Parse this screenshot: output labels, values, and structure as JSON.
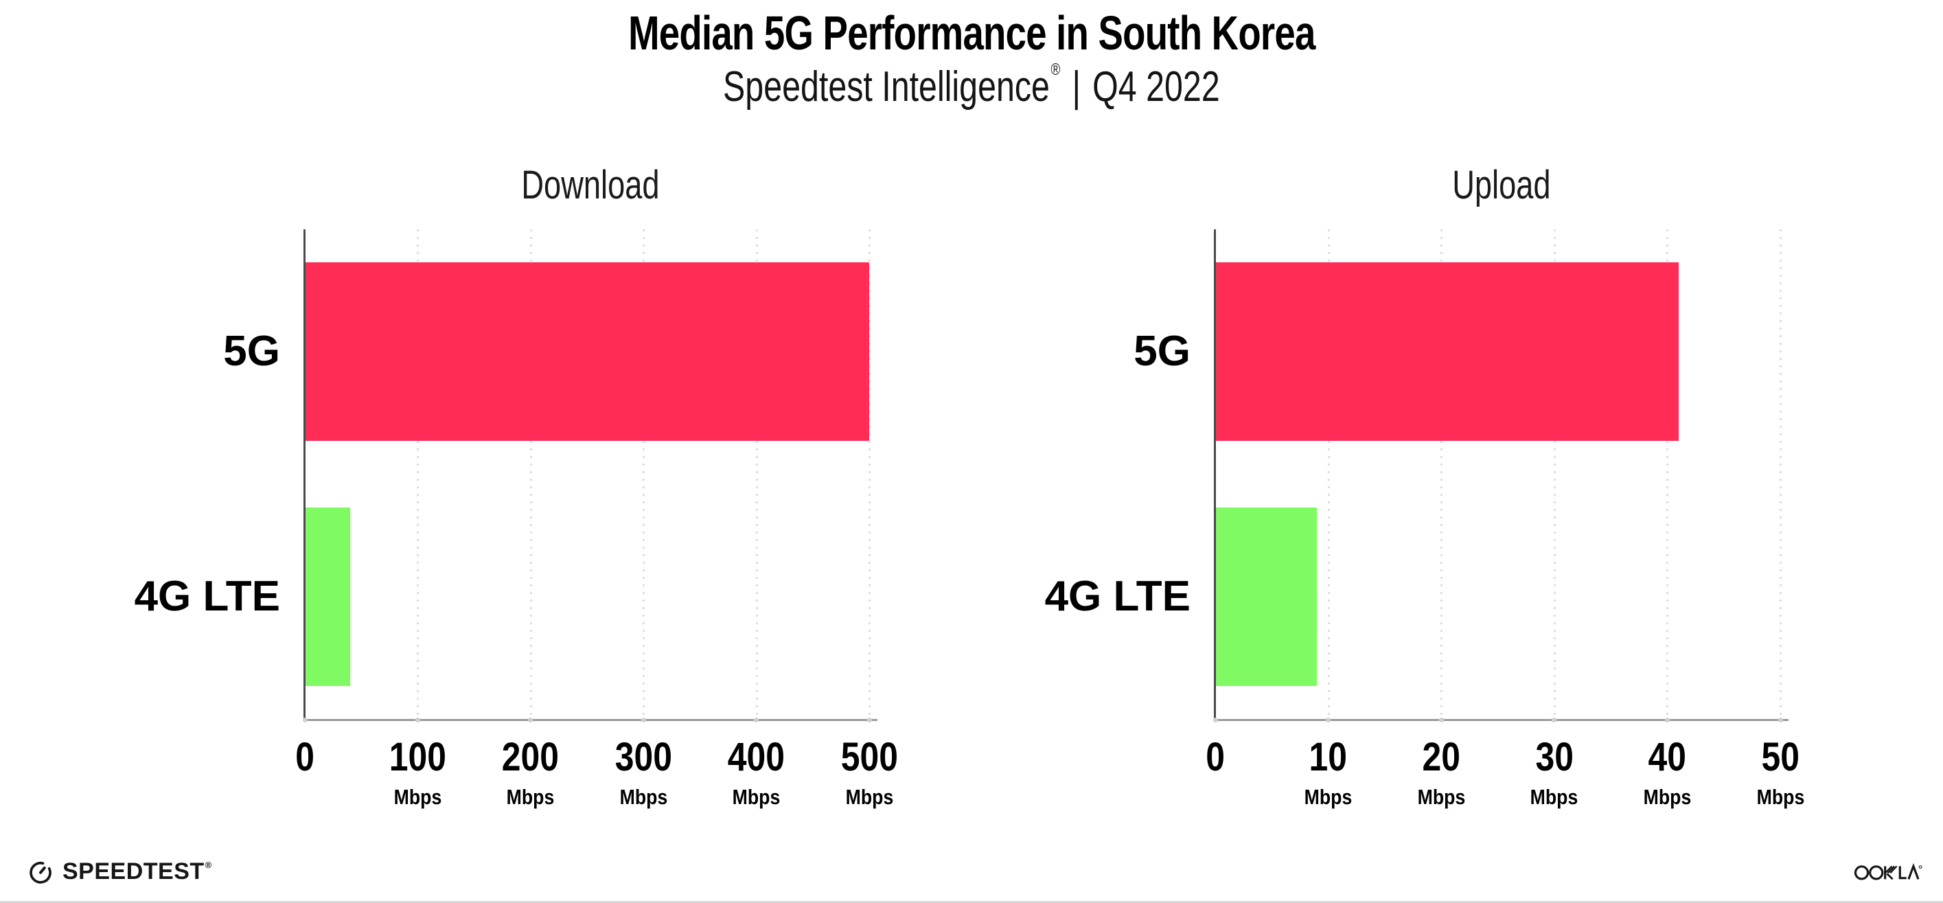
{
  "page": {
    "title": "Median 5G Performance in South Korea",
    "subtitle": {
      "brand": "Speedtest Intelligence",
      "registered": "®",
      "separator": "|",
      "period": "Q4 2022"
    }
  },
  "footer": {
    "speedtest_label": "SPEEDTEST",
    "speedtest_registered": "®",
    "ookla_label": "OOKLA",
    "ookla_registered": "®"
  },
  "colors": {
    "bar_5g": "#FF2D55",
    "bar_4g_lte": "#7FFA63",
    "gridline": "#DCDDE6",
    "y_axis_line": "#4A4A4A",
    "x_axis_line": "#9A9A9A",
    "text": "#0D0D0D"
  },
  "chart_data": [
    {
      "type": "bar",
      "orientation": "horizontal",
      "title": "Download",
      "categories": [
        "5G",
        "4G LTE"
      ],
      "values": [
        500,
        40
      ],
      "value_unit": "Mbps",
      "xticks": [
        0,
        100,
        200,
        300,
        400,
        500
      ],
      "tick_unit_label": "Mbps",
      "xlim": [
        0,
        506
      ],
      "grid": "dotted-vertical",
      "legend": "none",
      "series_colors": [
        "#FF2D55",
        "#7FFA63"
      ]
    },
    {
      "type": "bar",
      "orientation": "horizontal",
      "title": "Upload",
      "categories": [
        "5G",
        "4G LTE"
      ],
      "values": [
        41,
        9
      ],
      "value_unit": "Mbps",
      "xticks": [
        0,
        10,
        20,
        30,
        40,
        50
      ],
      "tick_unit_label": "Mbps",
      "xlim": [
        0,
        50.6
      ],
      "grid": "dotted-vertical",
      "legend": "none",
      "series_colors": [
        "#FF2D55",
        "#7FFA63"
      ]
    }
  ]
}
